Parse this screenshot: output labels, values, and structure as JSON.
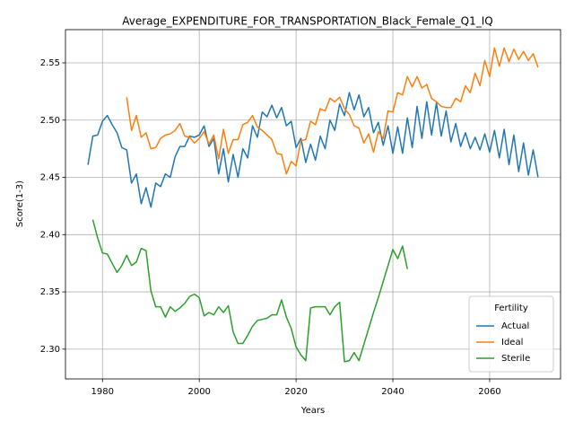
{
  "chart_data": {
    "type": "line",
    "title": "Average_EXPENDITURE_FOR_TRANSPORTATION_Black_Female_Q1_IQ",
    "xlabel": "Years",
    "ylabel": "Score(1-3)",
    "legend_title": "Fertility",
    "legend": "lower right",
    "grid": true,
    "xlim": [
      1972.35,
      2074.65
    ],
    "ylim": [
      2.274,
      2.579
    ],
    "xticks": [
      1980,
      2000,
      2020,
      2040,
      2060
    ],
    "yticks": [
      {
        "value": 2.3,
        "label": "2.30"
      },
      2.35,
      {
        "value": 2.4,
        "label": "2.40"
      },
      2.45,
      {
        "value": 2.5,
        "label": "2.50"
      },
      2.55
    ],
    "x": [
      1977,
      1978,
      1979,
      1980,
      1981,
      1982,
      1983,
      1984,
      1985,
      1986,
      1987,
      1988,
      1989,
      1990,
      1991,
      1992,
      1993,
      1994,
      1995,
      1996,
      1997,
      1998,
      1999,
      2000,
      2001,
      2002,
      2003,
      2004,
      2005,
      2006,
      2007,
      2008,
      2009,
      2010,
      2011,
      2012,
      2013,
      2014,
      2015,
      2016,
      2017,
      2018,
      2019,
      2020,
      2021,
      2022,
      2023,
      2024,
      2025,
      2026,
      2027,
      2028,
      2029,
      2030,
      2031,
      2032,
      2033,
      2034,
      2035,
      2036,
      2037,
      2038,
      2039,
      2040,
      2041,
      2042,
      2043,
      2044,
      2045,
      2046,
      2047,
      2048,
      2049,
      2050,
      2051,
      2052,
      2053,
      2054,
      2055,
      2056,
      2057,
      2058,
      2059,
      2060,
      2061,
      2062,
      2063,
      2064,
      2065,
      2066,
      2067,
      2068,
      2069,
      2070
    ],
    "series": [
      {
        "name": "Actual",
        "color": "#1f77b4",
        "values": [
          2.461,
          2.486,
          2.487,
          2.499,
          2.504,
          2.496,
          2.489,
          2.476,
          2.474,
          2.445,
          2.453,
          2.427,
          2.441,
          2.424,
          2.445,
          2.442,
          2.453,
          2.45,
          2.468,
          2.477,
          2.477,
          2.486,
          2.485,
          2.487,
          2.495,
          2.477,
          2.484,
          2.453,
          2.475,
          2.446,
          2.47,
          2.45,
          2.475,
          2.467,
          2.495,
          2.485,
          2.507,
          2.503,
          2.513,
          2.502,
          2.511,
          2.495,
          2.499,
          2.476,
          2.484,
          2.463,
          2.479,
          2.465,
          2.486,
          2.475,
          2.5,
          2.491,
          2.514,
          2.504,
          2.524,
          2.509,
          2.522,
          2.503,
          2.511,
          2.489,
          2.498,
          2.478,
          2.495,
          2.471,
          2.494,
          2.471,
          2.502,
          2.476,
          2.512,
          2.484,
          2.516,
          2.487,
          2.515,
          2.486,
          2.508,
          2.481,
          2.497,
          2.477,
          2.489,
          2.475,
          2.485,
          2.474,
          2.488,
          2.472,
          2.491,
          2.467,
          2.492,
          2.461,
          2.487,
          2.455,
          2.48,
          2.452,
          2.474,
          2.45
        ]
      },
      {
        "name": "Ideal",
        "color": "#ff7f0e",
        "values": [
          null,
          null,
          null,
          null,
          null,
          null,
          null,
          null,
          2.52,
          2.491,
          2.504,
          2.485,
          2.489,
          2.475,
          2.476,
          2.484,
          2.487,
          2.488,
          2.491,
          2.497,
          2.486,
          2.485,
          2.48,
          2.484,
          2.49,
          2.479,
          2.487,
          2.466,
          2.492,
          2.471,
          2.483,
          2.483,
          2.496,
          2.498,
          2.504,
          2.494,
          2.491,
          2.487,
          2.483,
          2.471,
          2.47,
          2.453,
          2.464,
          2.46,
          2.482,
          2.483,
          2.499,
          2.496,
          2.51,
          2.508,
          2.519,
          2.516,
          2.52,
          2.51,
          2.505,
          2.495,
          2.493,
          2.48,
          2.488,
          2.472,
          2.49,
          2.484,
          2.508,
          2.507,
          2.524,
          2.522,
          2.538,
          2.529,
          2.538,
          2.528,
          2.531,
          2.519,
          2.516,
          2.512,
          2.511,
          2.511,
          2.519,
          2.516,
          2.53,
          2.524,
          2.541,
          2.53,
          2.552,
          2.538,
          2.563,
          2.547,
          2.563,
          2.551,
          2.562,
          2.553,
          2.56,
          2.552,
          2.558,
          2.546
        ]
      },
      {
        "name": "Sterile",
        "color": "#2ca02c",
        "values": [
          null,
          2.413,
          2.397,
          2.384,
          2.383,
          2.375,
          2.367,
          2.373,
          2.382,
          2.373,
          2.376,
          2.388,
          2.386,
          2.351,
          2.337,
          2.337,
          2.328,
          2.337,
          2.333,
          2.336,
          2.34,
          2.346,
          2.348,
          2.345,
          2.329,
          2.332,
          2.33,
          2.337,
          2.332,
          2.338,
          2.315,
          2.305,
          2.305,
          2.312,
          2.32,
          2.325,
          2.326,
          2.327,
          2.33,
          2.33,
          2.343,
          2.328,
          2.318,
          2.302,
          2.295,
          2.29,
          2.336,
          2.337,
          2.337,
          2.337,
          2.33,
          2.337,
          2.341,
          2.289,
          2.29,
          2.297,
          2.29,
          2.304,
          2.318,
          2.332,
          2.345,
          2.359,
          2.373,
          2.387,
          2.379,
          2.39,
          2.37,
          null,
          null,
          null,
          null,
          null,
          null,
          null,
          null,
          null,
          null,
          null,
          null,
          null,
          null,
          null,
          null,
          null,
          null,
          null,
          null,
          null,
          null,
          null,
          null,
          null,
          null,
          null
        ]
      }
    ]
  }
}
